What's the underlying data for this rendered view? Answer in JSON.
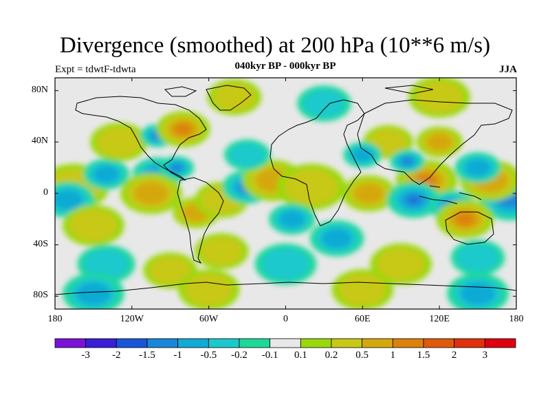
{
  "title": "Divergence (smoothed) at 200 hPa (10**6 m/s)",
  "subtitle": "040kyr BP - 000kyr BP",
  "expt": "Expt = tdwtF-tdwta",
  "season": "JJA",
  "lat_labels": [
    "80N",
    "40N",
    "0",
    "40S",
    "80S"
  ],
  "lon_labels": [
    "180",
    "120W",
    "60W",
    "0",
    "60E",
    "120E",
    "180"
  ],
  "colorbar": {
    "labels": [
      "-3",
      "-2",
      "-1.5",
      "-1",
      "-0.5",
      "-0.2",
      "-0.1",
      "0.1",
      "0.2",
      "0.5",
      "1",
      "1.5",
      "2",
      "3"
    ],
    "colors": [
      "#7a13d6",
      "#3a1fd6",
      "#1a55d8",
      "#1a86d8",
      "#10aad4",
      "#1ac9cc",
      "#1ed89a",
      "#e8e8e8",
      "#9ad80e",
      "#c8c816",
      "#d4a80c",
      "#dc820c",
      "#e05a0c",
      "#e0300c",
      "#dc0010"
    ]
  },
  "map": {
    "background_color": "#e8e8e8",
    "features": [
      {
        "type": "divergence",
        "lon": -165,
        "lat": 5,
        "r": 18,
        "level": 1
      },
      {
        "type": "convergence",
        "lon": -170,
        "lat": -5,
        "r": 14,
        "level": 2
      },
      {
        "type": "divergence",
        "lon": -150,
        "lat": -25,
        "r": 16,
        "level": 1
      },
      {
        "type": "convergence",
        "lon": -140,
        "lat": 15,
        "r": 12,
        "level": 2
      },
      {
        "type": "divergence",
        "lon": -130,
        "lat": 40,
        "r": 15,
        "level": 1
      },
      {
        "type": "convergence",
        "lon": -100,
        "lat": 45,
        "r": 9,
        "level": 3
      },
      {
        "type": "divergence",
        "lon": -80,
        "lat": 50,
        "r": 14,
        "level": 3
      },
      {
        "type": "convergence",
        "lon": -100,
        "lat": 15,
        "r": 13,
        "level": 2
      },
      {
        "type": "divergence",
        "lon": -105,
        "lat": 0,
        "r": 16,
        "level": 2
      },
      {
        "type": "convergence",
        "lon": -85,
        "lat": 20,
        "r": 9,
        "level": 3
      },
      {
        "type": "divergence",
        "lon": -70,
        "lat": -15,
        "r": 12,
        "level": 2
      },
      {
        "type": "divergence",
        "lon": -50,
        "lat": -5,
        "r": 14,
        "level": 1
      },
      {
        "type": "convergence",
        "lon": -30,
        "lat": 5,
        "r": 13,
        "level": 3
      },
      {
        "type": "divergence",
        "lon": -10,
        "lat": 10,
        "r": 16,
        "level": 2
      },
      {
        "type": "divergence",
        "lon": 20,
        "lat": 5,
        "r": 18,
        "level": 1
      },
      {
        "type": "convergence",
        "lon": 5,
        "lat": -20,
        "r": 12,
        "level": 2
      },
      {
        "type": "convergence",
        "lon": -30,
        "lat": 30,
        "r": 12,
        "level": 1
      },
      {
        "type": "divergence",
        "lon": -50,
        "lat": -45,
        "r": 14,
        "level": 1
      },
      {
        "type": "convergence",
        "lon": 40,
        "lat": -35,
        "r": 14,
        "level": 2
      },
      {
        "type": "divergence",
        "lon": 65,
        "lat": 0,
        "r": 14,
        "level": 2
      },
      {
        "type": "divergence",
        "lon": 80,
        "lat": 40,
        "r": 13,
        "level": 1
      },
      {
        "type": "convergence",
        "lon": 60,
        "lat": 30,
        "r": 10,
        "level": 2
      },
      {
        "type": "divergence",
        "lon": 110,
        "lat": 10,
        "r": 16,
        "level": 3
      },
      {
        "type": "convergence",
        "lon": 95,
        "lat": 25,
        "r": 9,
        "level": 3
      },
      {
        "type": "convergence",
        "lon": 100,
        "lat": -5,
        "r": 14,
        "level": 4
      },
      {
        "type": "convergence",
        "lon": 130,
        "lat": -10,
        "r": 12,
        "level": 4
      },
      {
        "type": "convergence",
        "lon": 175,
        "lat": -5,
        "r": 16,
        "level": 3
      },
      {
        "type": "divergence",
        "lon": 140,
        "lat": -20,
        "r": 15,
        "level": 3
      },
      {
        "type": "divergence",
        "lon": 160,
        "lat": 10,
        "r": 16,
        "level": 2
      },
      {
        "type": "convergence",
        "lon": 150,
        "lat": 20,
        "r": 12,
        "level": 2
      },
      {
        "type": "divergence",
        "lon": 120,
        "lat": 40,
        "r": 12,
        "level": 2
      },
      {
        "type": "convergence",
        "lon": -140,
        "lat": -55,
        "r": 15,
        "level": 1
      },
      {
        "type": "divergence",
        "lon": -90,
        "lat": -60,
        "r": 14,
        "level": 1
      },
      {
        "type": "convergence",
        "lon": 0,
        "lat": -55,
        "r": 16,
        "level": 1
      },
      {
        "type": "divergence",
        "lon": 90,
        "lat": -55,
        "r": 16,
        "level": 1
      },
      {
        "type": "convergence",
        "lon": 150,
        "lat": -50,
        "r": 14,
        "level": 1
      },
      {
        "type": "convergence",
        "lon": -150,
        "lat": -78,
        "r": 16,
        "level": 2
      },
      {
        "type": "divergence",
        "lon": -60,
        "lat": -75,
        "r": 16,
        "level": 1
      },
      {
        "type": "divergence",
        "lon": 60,
        "lat": -75,
        "r": 16,
        "level": 1
      },
      {
        "type": "convergence",
        "lon": 150,
        "lat": -78,
        "r": 16,
        "level": 2
      },
      {
        "type": "convergence",
        "lon": 30,
        "lat": 70,
        "r": 14,
        "level": 1
      },
      {
        "type": "divergence",
        "lon": -40,
        "lat": 75,
        "r": 14,
        "level": 1
      },
      {
        "type": "divergence",
        "lon": 120,
        "lat": 75,
        "r": 16,
        "level": 1
      }
    ]
  }
}
